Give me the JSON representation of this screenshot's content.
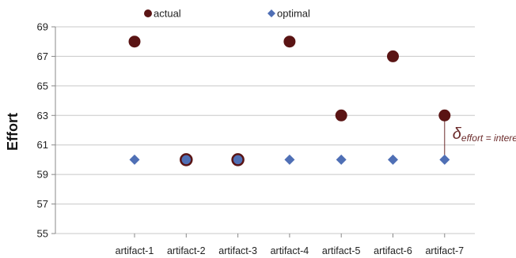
{
  "chart_data": {
    "type": "scatter",
    "categories": [
      "artifact-1",
      "artifact-2",
      "artifact-3",
      "artifact-4",
      "artifact-5",
      "artifact-6",
      "artifact-7"
    ],
    "series": [
      {
        "name": "actual",
        "values": [
          68,
          60,
          60,
          68,
          63,
          67,
          63
        ],
        "color": "#5a1414",
        "marker": "circle"
      },
      {
        "name": "optimal",
        "values": [
          60,
          60,
          60,
          60,
          60,
          60,
          60
        ],
        "color": "#4f6fb5",
        "marker": "diamond"
      }
    ],
    "ylabel": "Effort",
    "xlabel": "",
    "ylim": [
      55,
      69
    ],
    "yticks": [
      55,
      57,
      59,
      61,
      63,
      65,
      67,
      69
    ],
    "grid": true,
    "legend_position": "top",
    "annotation": {
      "symbol": "δ",
      "subscript": "effort = interest",
      "category": "artifact-7"
    }
  }
}
